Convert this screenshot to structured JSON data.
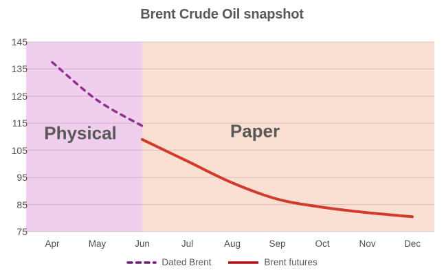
{
  "title": "Brent Crude Oil snapshot",
  "colors": {
    "physical_region_fill": "#f0cfee",
    "paper_region_fill": "#fae0d3",
    "gridline": "rgba(96,64,80,0.22)",
    "dated_brent_line": "#90308e",
    "brent_futures_line": "#d23a2b",
    "legend_dated_swatch": "#6f1d72",
    "legend_futures_swatch": "#b10e13",
    "title_text": "#595959",
    "tick_text": "#5a4c48"
  },
  "legend": {
    "items": [
      {
        "label": "Dated Brent",
        "style": "dashed",
        "color": "#6f1d72"
      },
      {
        "label": "Brent futures",
        "style": "solid",
        "color": "#b10e13"
      }
    ]
  },
  "chart_data": {
    "type": "line",
    "title": "Brent Crude Oil snapshot",
    "x_categories": [
      "Apr",
      "May",
      "Jun",
      "Jul",
      "Aug",
      "Sep",
      "Oct",
      "Nov",
      "Dec"
    ],
    "yticks": [
      75,
      85,
      95,
      105,
      115,
      125,
      135,
      145
    ],
    "ylim": [
      75,
      145
    ],
    "grid": "horizontal",
    "legend_position": "bottom",
    "series": [
      {
        "name": "Dated Brent",
        "style": "dashed",
        "color": "#90308e",
        "x": [
          "Apr",
          "May",
          "Jun"
        ],
        "values": [
          137.5,
          123.5,
          114
        ]
      },
      {
        "name": "Brent futures",
        "style": "solid",
        "color": "#d23a2b",
        "x": [
          "Jun",
          "Jul",
          "Aug",
          "Sep",
          "Oct",
          "Nov",
          "Dec"
        ],
        "values": [
          109,
          101,
          93,
          87,
          84,
          82,
          80.5
        ]
      }
    ],
    "regions": [
      {
        "label": "Physical",
        "from": "Apr",
        "to": "Jun",
        "fill": "#f0cfee"
      },
      {
        "label": "Paper",
        "from": "Jun",
        "to": "Dec",
        "fill": "#fae0d3"
      }
    ],
    "annotations": [
      {
        "text": "Physical"
      },
      {
        "text": "Paper"
      }
    ]
  }
}
